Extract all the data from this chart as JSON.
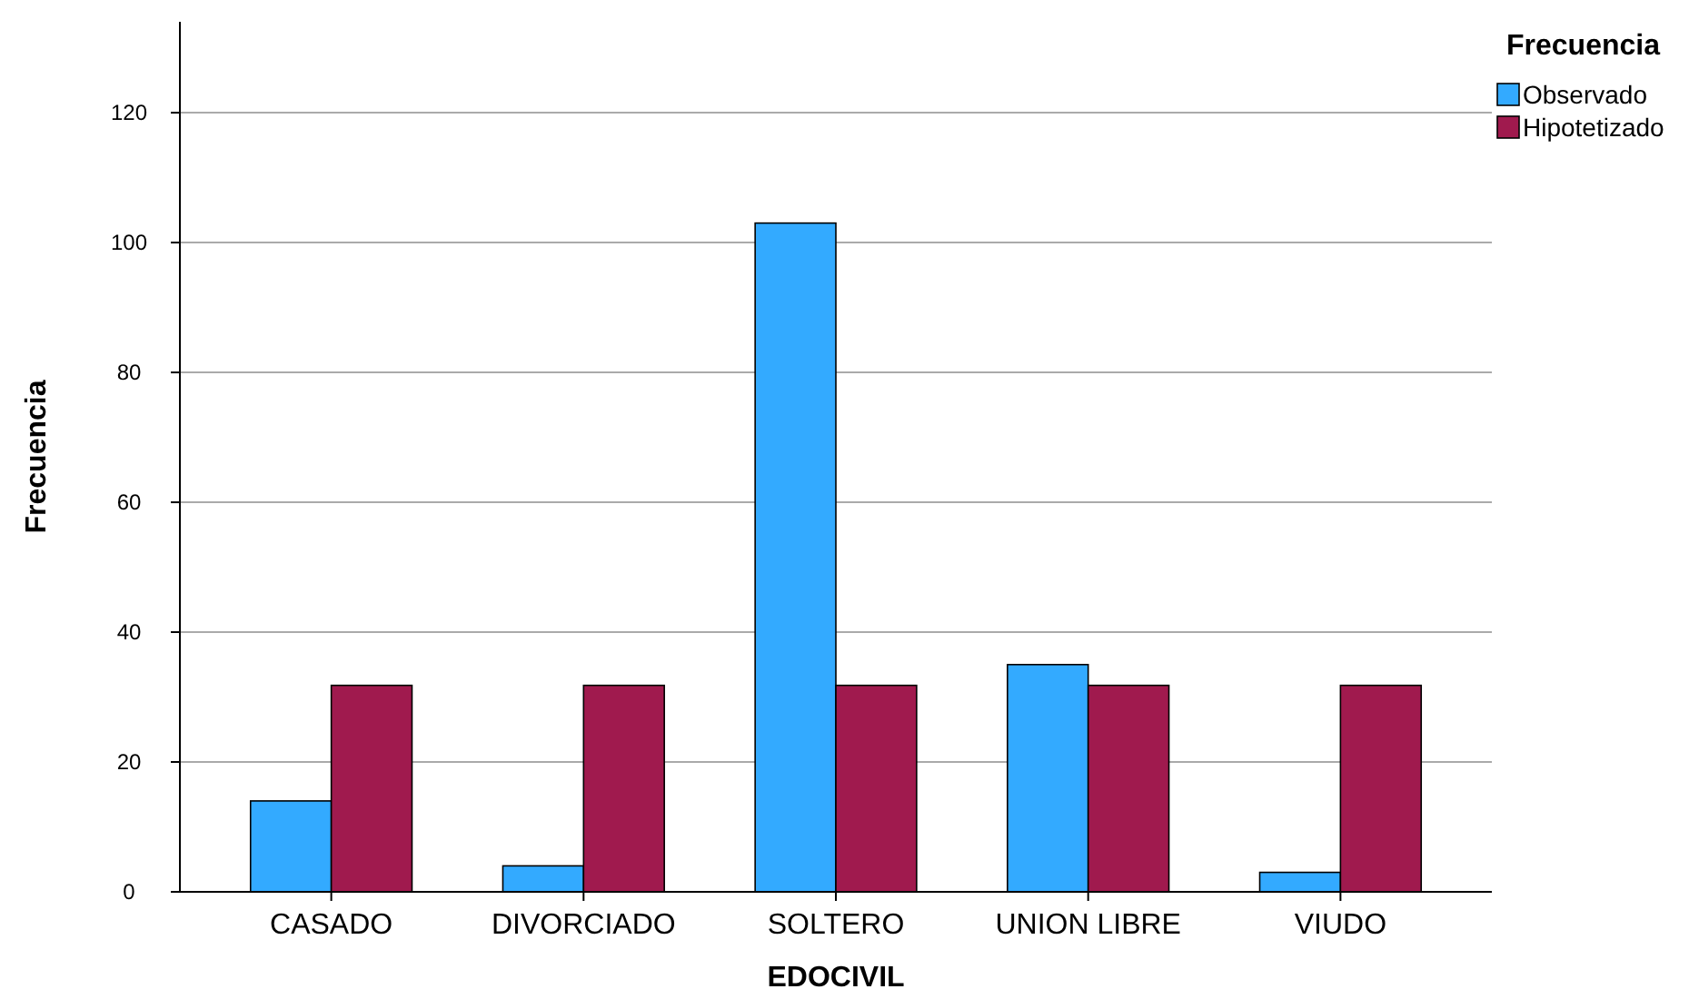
{
  "chart_data": {
    "type": "bar",
    "xlabel": "EDOCIVIL",
    "ylabel": "Frecuencia",
    "legend_title": "Frecuencia",
    "categories": [
      "CASADO",
      "DIVORCIADO",
      "SOLTERO",
      "UNION LIBRE",
      "VIUDO"
    ],
    "series": [
      {
        "name": "Observado",
        "color": "#33aaff",
        "values": [
          14,
          4,
          103,
          35,
          3
        ]
      },
      {
        "name": "Hipotetizado",
        "color": "#a01a4e",
        "values": [
          31.8,
          31.8,
          31.8,
          31.8,
          31.8
        ]
      }
    ],
    "ylim": [
      0,
      134
    ],
    "yticks": [
      0,
      20,
      40,
      60,
      80,
      100,
      120
    ],
    "grid": "y",
    "legend": "top right"
  }
}
